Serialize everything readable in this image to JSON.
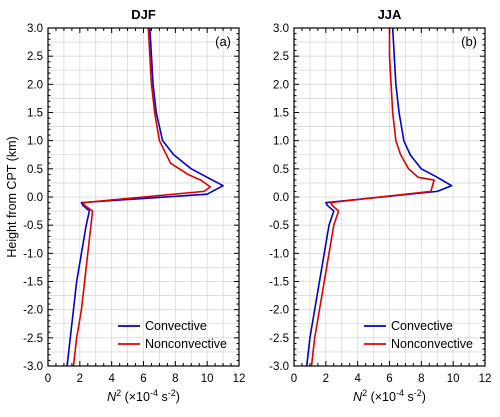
{
  "chart_data": [
    {
      "type": "line",
      "title": "DJF",
      "panel_label": "(a)",
      "ylabel": "Height from CPT (km)",
      "xlabel": {
        "base": "N",
        "sup": "2",
        "unit_pre": " (×10",
        "unit_exp": "-4",
        "unit_mid": " s",
        "unit_exp2": "-2",
        "unit_post": ")"
      },
      "xlim": [
        0,
        12
      ],
      "ylim": [
        -3.0,
        3.0
      ],
      "xticks": [
        0,
        2,
        4,
        6,
        8,
        10,
        12
      ],
      "yticks": [
        -3.0,
        -2.5,
        -2.0,
        -1.5,
        -1.0,
        -0.5,
        0.0,
        0.5,
        1.0,
        1.5,
        2.0,
        2.5,
        3.0
      ],
      "grid": true,
      "legend_position": "bottom-right",
      "series": [
        {
          "name": "Convective",
          "color": "#0000cc",
          "points": [
            [
              1.2,
              -3.0
            ],
            [
              1.4,
              -2.5
            ],
            [
              1.6,
              -2.0
            ],
            [
              1.8,
              -1.5
            ],
            [
              2.1,
              -1.0
            ],
            [
              2.4,
              -0.5
            ],
            [
              2.6,
              -0.25
            ],
            [
              2.2,
              -0.15
            ],
            [
              2.1,
              -0.1
            ],
            [
              10.0,
              0.05
            ],
            [
              11.0,
              0.2
            ],
            [
              10.0,
              0.35
            ],
            [
              9.0,
              0.5
            ],
            [
              7.9,
              0.75
            ],
            [
              7.2,
              1.0
            ],
            [
              6.8,
              1.5
            ],
            [
              6.6,
              2.0
            ],
            [
              6.5,
              2.5
            ],
            [
              6.4,
              3.0
            ]
          ]
        },
        {
          "name": "Nonconvective",
          "color": "#dd0000",
          "points": [
            [
              1.6,
              -3.0
            ],
            [
              1.8,
              -2.5
            ],
            [
              2.1,
              -2.0
            ],
            [
              2.3,
              -1.5
            ],
            [
              2.5,
              -1.0
            ],
            [
              2.7,
              -0.5
            ],
            [
              2.8,
              -0.25
            ],
            [
              2.3,
              -0.15
            ],
            [
              2.2,
              -0.1
            ],
            [
              9.8,
              0.1
            ],
            [
              10.2,
              0.18
            ],
            [
              9.6,
              0.3
            ],
            [
              8.8,
              0.4
            ],
            [
              7.7,
              0.6
            ],
            [
              7.0,
              1.0
            ],
            [
              6.7,
              1.5
            ],
            [
              6.5,
              2.0
            ],
            [
              6.4,
              2.5
            ],
            [
              6.3,
              3.0
            ]
          ]
        }
      ]
    },
    {
      "type": "line",
      "title": "JJA",
      "panel_label": "(b)",
      "ylabel": "",
      "xlabel": {
        "base": "N",
        "sup": "2",
        "unit_pre": " (×10",
        "unit_exp": "-4",
        "unit_mid": " s",
        "unit_exp2": "-2",
        "unit_post": ")"
      },
      "xlim": [
        0,
        12
      ],
      "ylim": [
        -3.0,
        3.0
      ],
      "xticks": [
        0,
        2,
        4,
        6,
        8,
        10,
        12
      ],
      "yticks": [
        -3.0,
        -2.5,
        -2.0,
        -1.5,
        -1.0,
        -0.5,
        0.0,
        0.5,
        1.0,
        1.5,
        2.0,
        2.5,
        3.0
      ],
      "grid": true,
      "legend_position": "bottom-right",
      "series": [
        {
          "name": "Convective",
          "color": "#0000cc",
          "points": [
            [
              0.8,
              -3.0
            ],
            [
              1.0,
              -2.5
            ],
            [
              1.3,
              -2.0
            ],
            [
              1.6,
              -1.5
            ],
            [
              1.9,
              -1.0
            ],
            [
              2.2,
              -0.5
            ],
            [
              2.5,
              -0.25
            ],
            [
              2.1,
              -0.15
            ],
            [
              2.0,
              -0.1
            ],
            [
              9.0,
              0.1
            ],
            [
              9.9,
              0.2
            ],
            [
              9.0,
              0.35
            ],
            [
              8.0,
              0.5
            ],
            [
              7.3,
              0.75
            ],
            [
              6.9,
              1.0
            ],
            [
              6.6,
              1.5
            ],
            [
              6.4,
              2.0
            ],
            [
              6.3,
              2.5
            ],
            [
              6.2,
              3.0
            ]
          ]
        },
        {
          "name": "Nonconvective",
          "color": "#dd0000",
          "points": [
            [
              1.1,
              -3.0
            ],
            [
              1.3,
              -2.5
            ],
            [
              1.6,
              -2.0
            ],
            [
              1.9,
              -1.5
            ],
            [
              2.2,
              -1.0
            ],
            [
              2.5,
              -0.5
            ],
            [
              2.8,
              -0.25
            ],
            [
              2.4,
              -0.15
            ],
            [
              2.3,
              -0.1
            ],
            [
              8.6,
              0.1
            ],
            [
              8.8,
              0.3
            ],
            [
              7.8,
              0.35
            ],
            [
              7.2,
              0.5
            ],
            [
              6.7,
              0.75
            ],
            [
              6.4,
              1.0
            ],
            [
              6.2,
              1.5
            ],
            [
              6.1,
              2.0
            ],
            [
              6.0,
              2.5
            ],
            [
              6.0,
              3.0
            ]
          ]
        }
      ]
    }
  ]
}
